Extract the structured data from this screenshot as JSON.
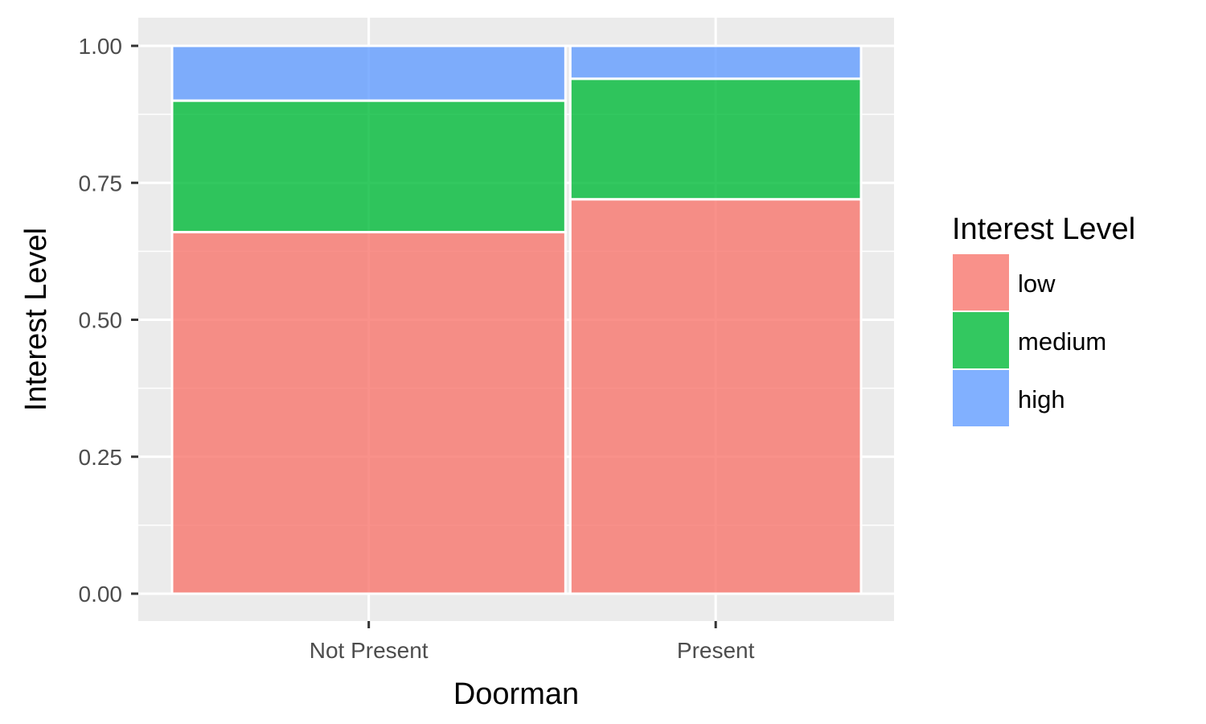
{
  "chart_data": {
    "type": "bar",
    "subtype": "mosaic",
    "xlabel": "Doorman",
    "ylabel": "Interest Level",
    "legend_title": "Interest Level",
    "legend_position": "right",
    "grid": true,
    "ylim": [
      0,
      1
    ],
    "yticks": [
      "0.00",
      "0.25",
      "0.50",
      "0.75",
      "1.00"
    ],
    "categories": [
      {
        "label": "Not Present",
        "share": 0.575
      },
      {
        "label": "Present",
        "share": 0.425
      }
    ],
    "series": [
      {
        "name": "low",
        "color": "#F8766D",
        "values": [
          0.66,
          0.72
        ]
      },
      {
        "name": "medium",
        "color": "#00BA38",
        "values": [
          0.24,
          0.22
        ]
      },
      {
        "name": "high",
        "color": "#619CFF",
        "values": [
          0.1,
          0.06
        ]
      }
    ],
    "colors": {
      "panel_bg": "#EBEBEB",
      "grid": "#FFFFFF",
      "tick_text": "#4D4D4D"
    }
  }
}
